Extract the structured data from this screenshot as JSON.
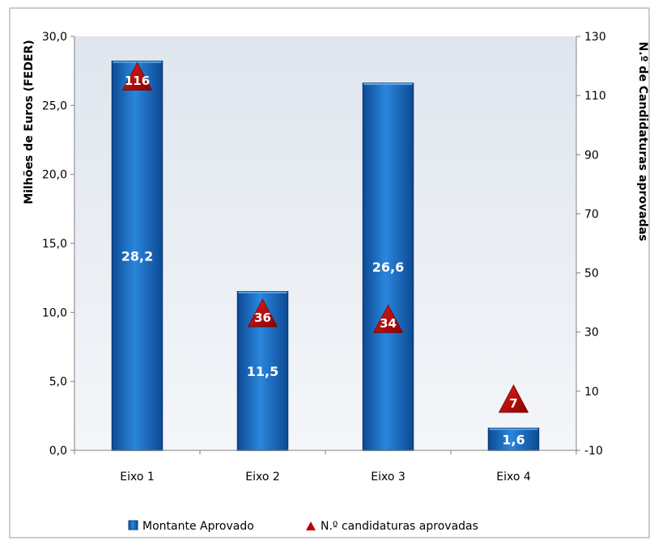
{
  "chart_data": {
    "type": "bar",
    "categories": [
      "Eixo 1",
      "Eixo 2",
      "Eixo 3",
      "Eixo 4"
    ],
    "series": [
      {
        "name": "Montante Aprovado",
        "type": "bar",
        "axis": "left",
        "values": [
          28.2,
          11.5,
          26.6,
          1.6
        ],
        "labels": [
          "28,2",
          "11,5",
          "26,6",
          "1,6"
        ]
      },
      {
        "name": "N.º candidaturas aprovadas",
        "type": "marker-triangle",
        "axis": "right",
        "values": [
          116,
          36,
          34,
          7
        ],
        "labels": [
          "116",
          "36",
          "34",
          "7"
        ]
      }
    ],
    "ylabel": "Milhões de Euros (FEDER)",
    "y2label": "N.º de Candidaturas aprovadas",
    "ylim": [
      0,
      30
    ],
    "y2lim": [
      -10,
      130
    ],
    "yticks": [
      "0,0",
      "5,0",
      "10,0",
      "15,0",
      "20,0",
      "25,0",
      "30,0"
    ],
    "y2ticks": [
      "-10",
      "10",
      "30",
      "50",
      "70",
      "90",
      "110",
      "130"
    ],
    "legend_position": "bottom",
    "grid": false,
    "colors": {
      "bar": "#1a6fc2",
      "bar_dark": "#0b3c78",
      "marker": "#c00000",
      "plot_bg": "#e8edf3"
    }
  }
}
